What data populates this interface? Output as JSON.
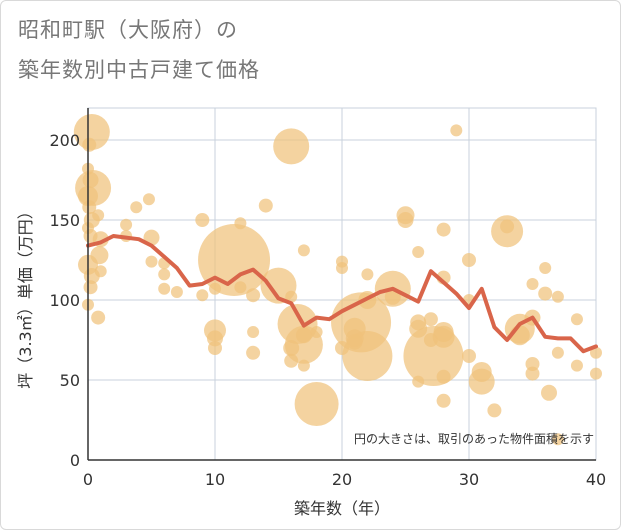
{
  "title": [
    "昭和町駅（大阪府）の",
    "築年数別中古戸建て価格"
  ],
  "chart_data": {
    "type": "scatter",
    "xlabel": "築年数（年）",
    "ylabel": "坪（3.3㎡）単価（万円）",
    "xlim": [
      0,
      40
    ],
    "ylim": [
      0,
      220
    ],
    "xticks": [
      0,
      10,
      20,
      30,
      40
    ],
    "yticks": [
      0,
      50,
      100,
      150,
      200
    ],
    "grid": true,
    "annotation": "円の大きさは、取引のあった物件面積を示す",
    "colors": {
      "bubble": "#f0c27b",
      "line": "#d9654a",
      "axis": "#333333",
      "grid": "#c8d2dc"
    },
    "bubbles": [
      {
        "x": 0.3,
        "y": 205,
        "s": 18
      },
      {
        "x": 0.1,
        "y": 197,
        "s": 7
      },
      {
        "x": 0,
        "y": 182,
        "s": 6
      },
      {
        "x": 0.2,
        "y": 175,
        "s": 8
      },
      {
        "x": 0.4,
        "y": 170,
        "s": 18
      },
      {
        "x": 0,
        "y": 165,
        "s": 10
      },
      {
        "x": 0.1,
        "y": 158,
        "s": 7
      },
      {
        "x": 0.3,
        "y": 150,
        "s": 8
      },
      {
        "x": 0,
        "y": 145,
        "s": 6
      },
      {
        "x": 0.2,
        "y": 140,
        "s": 7
      },
      {
        "x": 0.8,
        "y": 153,
        "s": 6
      },
      {
        "x": 1,
        "y": 138,
        "s": 8
      },
      {
        "x": 0.9,
        "y": 128,
        "s": 9
      },
      {
        "x": 0,
        "y": 122,
        "s": 10
      },
      {
        "x": 0.3,
        "y": 115,
        "s": 8
      },
      {
        "x": 1,
        "y": 118,
        "s": 6
      },
      {
        "x": 0.2,
        "y": 108,
        "s": 7
      },
      {
        "x": 0,
        "y": 97,
        "s": 6
      },
      {
        "x": 0.8,
        "y": 89,
        "s": 7
      },
      {
        "x": 3,
        "y": 147,
        "s": 6
      },
      {
        "x": 3,
        "y": 140,
        "s": 6
      },
      {
        "x": 3.8,
        "y": 158,
        "s": 6
      },
      {
        "x": 4.8,
        "y": 163,
        "s": 6
      },
      {
        "x": 5,
        "y": 139,
        "s": 8
      },
      {
        "x": 5,
        "y": 124,
        "s": 6
      },
      {
        "x": 6,
        "y": 123,
        "s": 6
      },
      {
        "x": 6,
        "y": 116,
        "s": 6
      },
      {
        "x": 6,
        "y": 107,
        "s": 6
      },
      {
        "x": 7,
        "y": 105,
        "s": 6
      },
      {
        "x": 9,
        "y": 150,
        "s": 7
      },
      {
        "x": 9,
        "y": 103,
        "s": 6
      },
      {
        "x": 10,
        "y": 107,
        "s": 6
      },
      {
        "x": 10,
        "y": 81,
        "s": 11
      },
      {
        "x": 10,
        "y": 76,
        "s": 8
      },
      {
        "x": 10,
        "y": 70,
        "s": 7
      },
      {
        "x": 11.5,
        "y": 125,
        "s": 36
      },
      {
        "x": 12,
        "y": 148,
        "s": 6
      },
      {
        "x": 12,
        "y": 108,
        "s": 6
      },
      {
        "x": 13,
        "y": 103,
        "s": 7
      },
      {
        "x": 13,
        "y": 80,
        "s": 6
      },
      {
        "x": 13,
        "y": 67,
        "s": 7
      },
      {
        "x": 14,
        "y": 159,
        "s": 7
      },
      {
        "x": 15,
        "y": 109,
        "s": 18
      },
      {
        "x": 16,
        "y": 196,
        "s": 18
      },
      {
        "x": 16,
        "y": 102,
        "s": 6
      },
      {
        "x": 16,
        "y": 70,
        "s": 8
      },
      {
        "x": 16,
        "y": 62,
        "s": 7
      },
      {
        "x": 16.5,
        "y": 85,
        "s": 20
      },
      {
        "x": 17,
        "y": 131,
        "s": 6
      },
      {
        "x": 17,
        "y": 78,
        "s": 8
      },
      {
        "x": 17,
        "y": 72,
        "s": 19
      },
      {
        "x": 17,
        "y": 59,
        "s": 6
      },
      {
        "x": 18,
        "y": 35,
        "s": 22
      },
      {
        "x": 18,
        "y": 80,
        "s": 6
      },
      {
        "x": 20,
        "y": 124,
        "s": 6
      },
      {
        "x": 20,
        "y": 120,
        "s": 6
      },
      {
        "x": 20,
        "y": 70,
        "s": 7
      },
      {
        "x": 21,
        "y": 82,
        "s": 11
      },
      {
        "x": 21,
        "y": 76,
        "s": 9
      },
      {
        "x": 21,
        "y": 74,
        "s": 8
      },
      {
        "x": 21.5,
        "y": 86,
        "s": 30
      },
      {
        "x": 22,
        "y": 65,
        "s": 25
      },
      {
        "x": 22,
        "y": 116,
        "s": 6
      },
      {
        "x": 22,
        "y": 100,
        "s": 9
      },
      {
        "x": 24,
        "y": 107,
        "s": 18
      },
      {
        "x": 24,
        "y": 102,
        "s": 8
      },
      {
        "x": 25,
        "y": 153,
        "s": 9
      },
      {
        "x": 25,
        "y": 150,
        "s": 8
      },
      {
        "x": 26,
        "y": 130,
        "s": 6
      },
      {
        "x": 26,
        "y": 86,
        "s": 8
      },
      {
        "x": 26,
        "y": 82,
        "s": 9
      },
      {
        "x": 26,
        "y": 49,
        "s": 6
      },
      {
        "x": 27,
        "y": 88,
        "s": 7
      },
      {
        "x": 27,
        "y": 75,
        "s": 7
      },
      {
        "x": 27.2,
        "y": 65,
        "s": 30
      },
      {
        "x": 28,
        "y": 144,
        "s": 7
      },
      {
        "x": 28,
        "y": 114,
        "s": 7
      },
      {
        "x": 28,
        "y": 80,
        "s": 10
      },
      {
        "x": 28,
        "y": 77,
        "s": 11
      },
      {
        "x": 28,
        "y": 52,
        "s": 7
      },
      {
        "x": 28,
        "y": 37,
        "s": 7
      },
      {
        "x": 29,
        "y": 206,
        "s": 6
      },
      {
        "x": 30,
        "y": 125,
        "s": 7
      },
      {
        "x": 30,
        "y": 100,
        "s": 6
      },
      {
        "x": 30,
        "y": 65,
        "s": 7
      },
      {
        "x": 31,
        "y": 55,
        "s": 10
      },
      {
        "x": 31,
        "y": 49,
        "s": 13
      },
      {
        "x": 32,
        "y": 31,
        "s": 7
      },
      {
        "x": 33,
        "y": 146,
        "s": 7
      },
      {
        "x": 33,
        "y": 143,
        "s": 16
      },
      {
        "x": 34,
        "y": 82,
        "s": 15
      },
      {
        "x": 34,
        "y": 78,
        "s": 10
      },
      {
        "x": 35,
        "y": 110,
        "s": 6
      },
      {
        "x": 35,
        "y": 89,
        "s": 8
      },
      {
        "x": 35,
        "y": 60,
        "s": 7
      },
      {
        "x": 35,
        "y": 54,
        "s": 7
      },
      {
        "x": 36,
        "y": 120,
        "s": 6
      },
      {
        "x": 36,
        "y": 104,
        "s": 7
      },
      {
        "x": 36.3,
        "y": 42,
        "s": 8
      },
      {
        "x": 37,
        "y": 102,
        "s": 6
      },
      {
        "x": 37,
        "y": 67,
        "s": 6
      },
      {
        "x": 37,
        "y": 13,
        "s": 6
      },
      {
        "x": 38.5,
        "y": 88,
        "s": 6
      },
      {
        "x": 38.5,
        "y": 59,
        "s": 6
      },
      {
        "x": 40,
        "y": 67,
        "s": 6
      },
      {
        "x": 40,
        "y": 54,
        "s": 6
      }
    ],
    "series": [
      {
        "x": [
          0,
          1,
          2,
          3,
          4,
          5,
          6,
          7,
          8,
          9,
          10,
          11,
          12,
          13,
          14,
          15,
          16,
          17,
          18,
          19,
          20,
          21,
          22,
          23,
          24,
          25,
          26,
          27,
          28,
          29,
          30,
          31,
          32,
          33,
          34,
          35,
          36,
          37,
          38,
          39,
          40
        ],
        "values": [
          134,
          136,
          140,
          139,
          138,
          134,
          127,
          120,
          109,
          110,
          114,
          110,
          116,
          119,
          112,
          101,
          98,
          84,
          89,
          88,
          93,
          97,
          101,
          105,
          107,
          103,
          99,
          118,
          111,
          104,
          95,
          107,
          83,
          75,
          85,
          89,
          77,
          76,
          76,
          68,
          71
        ]
      }
    ]
  }
}
